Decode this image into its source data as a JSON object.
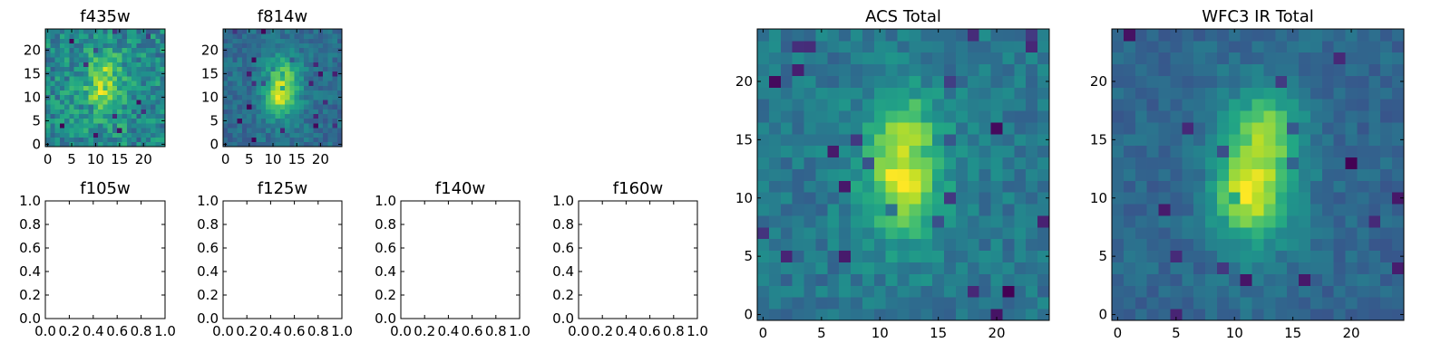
{
  "chart_data": [
    {
      "type": "heatmap",
      "title": "f435w",
      "xlim": [
        -0.5,
        24.5
      ],
      "ylim": [
        -0.5,
        24.5
      ],
      "xticks": [
        0,
        5,
        10,
        15,
        20
      ],
      "yticks": [
        0,
        5,
        10,
        15,
        20
      ],
      "colormap": "viridis",
      "grid": false,
      "image": {
        "size": 25,
        "seed": 11,
        "center": [
          12,
          12
        ],
        "peaks": [
          [
            12,
            16,
            0.25
          ],
          [
            11,
            11,
            0.3
          ]
        ],
        "sigma": [
          4.0,
          6.0
        ],
        "amplitude": 0.25,
        "noise": 0.5,
        "bias": 0.55
      }
    },
    {
      "type": "heatmap",
      "title": "f814w",
      "xlim": [
        -0.5,
        24.5
      ],
      "ylim": [
        -0.5,
        24.5
      ],
      "xticks": [
        0,
        5,
        10,
        15,
        20
      ],
      "yticks": [
        0,
        5,
        10,
        15,
        20
      ],
      "colormap": "viridis",
      "grid": false,
      "image": {
        "size": 25,
        "seed": 23,
        "center": [
          12,
          12
        ],
        "peaks": [
          [
            12,
            15,
            0.2
          ],
          [
            11,
            10,
            0.4
          ]
        ],
        "sigma": [
          3.0,
          5.0
        ],
        "amplitude": 0.55,
        "noise": 0.3,
        "bias": 0.35
      }
    },
    {
      "type": "empty",
      "title": "f105w",
      "xlim": [
        0,
        1
      ],
      "ylim": [
        0,
        1
      ],
      "xticks": [
        "0.0",
        "0.2",
        "0.4",
        "0.6",
        "0.8",
        "1.0"
      ],
      "yticks": [
        "0.0",
        "0.2",
        "0.4",
        "0.6",
        "0.8",
        "1.0"
      ]
    },
    {
      "type": "empty",
      "title": "f125w",
      "xlim": [
        0,
        1
      ],
      "ylim": [
        0,
        1
      ],
      "xticks": [
        "0.0",
        "0.2",
        "0.4",
        "0.6",
        "0.8",
        "1.0"
      ],
      "yticks": [
        "0.0",
        "0.2",
        "0.4",
        "0.6",
        "0.8",
        "1.0"
      ]
    },
    {
      "type": "empty",
      "title": "f140w",
      "xlim": [
        0,
        1
      ],
      "ylim": [
        0,
        1
      ],
      "xticks": [
        "0.0",
        "0.2",
        "0.4",
        "0.6",
        "0.8",
        "1.0"
      ],
      "yticks": [
        "0.0",
        "0.2",
        "0.4",
        "0.6",
        "0.8",
        "1.0"
      ]
    },
    {
      "type": "empty",
      "title": "f160w",
      "xlim": [
        0,
        1
      ],
      "ylim": [
        0,
        1
      ],
      "xticks": [
        "0.0",
        "0.2",
        "0.4",
        "0.6",
        "0.8",
        "1.0"
      ],
      "yticks": [
        "0.0",
        "0.2",
        "0.4",
        "0.6",
        "0.8",
        "1.0"
      ]
    },
    {
      "type": "heatmap",
      "title": "ACS Total",
      "xlim": [
        -0.5,
        24.5
      ],
      "ylim": [
        -0.5,
        24.5
      ],
      "xticks": [
        0,
        5,
        10,
        15,
        20
      ],
      "yticks": [
        0,
        5,
        10,
        15,
        20
      ],
      "colormap": "viridis",
      "grid": false,
      "image": {
        "size": 25,
        "seed": 37,
        "center": [
          12,
          12
        ],
        "peaks": [
          [
            12,
            16,
            0.35
          ],
          [
            12,
            11,
            0.45
          ]
        ],
        "sigma": [
          3.0,
          5.0
        ],
        "amplitude": 0.35,
        "noise": 0.28,
        "bias": 0.45
      }
    },
    {
      "type": "heatmap",
      "title": "WFC3 IR Total",
      "xlim": [
        -0.5,
        24.5
      ],
      "ylim": [
        -0.5,
        24.5
      ],
      "xticks": [
        0,
        5,
        10,
        15,
        20
      ],
      "yticks": [
        0,
        5,
        10,
        15,
        20
      ],
      "colormap": "viridis",
      "grid": false,
      "image": {
        "size": 25,
        "seed": 53,
        "center": [
          12,
          12
        ],
        "peaks": [
          [
            13,
            16,
            0.4
          ],
          [
            11,
            10,
            0.5
          ]
        ],
        "sigma": [
          2.6,
          4.6
        ],
        "amplitude": 0.6,
        "noise": 0.22,
        "bias": 0.3
      }
    }
  ]
}
